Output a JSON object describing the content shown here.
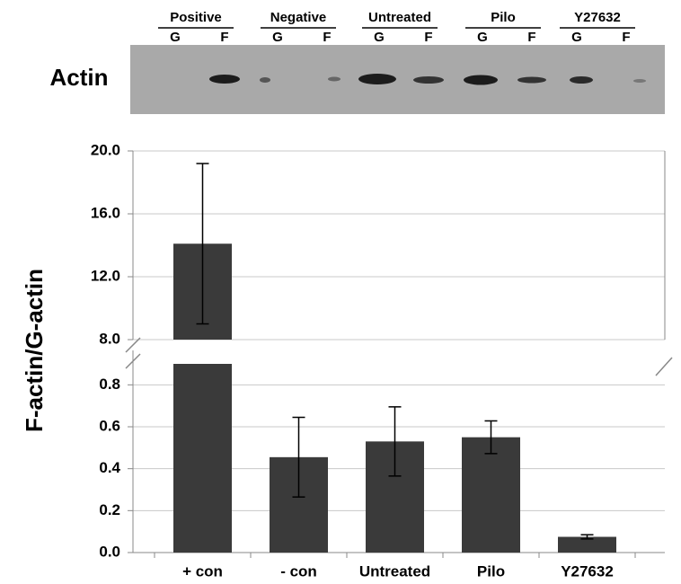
{
  "blot": {
    "label": "Actin",
    "groups": [
      {
        "name": "Positive",
        "lanes": [
          "G",
          "F"
        ]
      },
      {
        "name": "Negative",
        "lanes": [
          "G",
          "F"
        ]
      },
      {
        "name": "Untreated",
        "lanes": [
          "G",
          "F"
        ]
      },
      {
        "name": "Pilo",
        "lanes": [
          "G",
          "F"
        ]
      },
      {
        "name": "Y27632",
        "lanes": [
          "G",
          "F"
        ]
      }
    ]
  },
  "chart_data": {
    "type": "bar",
    "ylabel": "F-actin/G-actin",
    "categories": [
      "+ con",
      "- con",
      "Untreated",
      "Pilo",
      "Y27632"
    ],
    "values": [
      14.1,
      0.455,
      0.53,
      0.55,
      0.075
    ],
    "errors": [
      5.1,
      0.19,
      0.165,
      0.078,
      0.01
    ],
    "color": "#3a3a3a",
    "ylim": [
      0,
      20
    ],
    "ybreak": [
      0.9,
      8
    ],
    "yticks": [
      {
        "value": 0,
        "label": "0.0"
      },
      0.2,
      0.4,
      0.6,
      0.8,
      {
        "value": 8,
        "label": "8.0"
      },
      {
        "value": 12,
        "label": "12.0"
      },
      {
        "value": 16,
        "label": "16.0"
      },
      {
        "value": 20,
        "label": "20.0"
      }
    ],
    "grid": true
  }
}
